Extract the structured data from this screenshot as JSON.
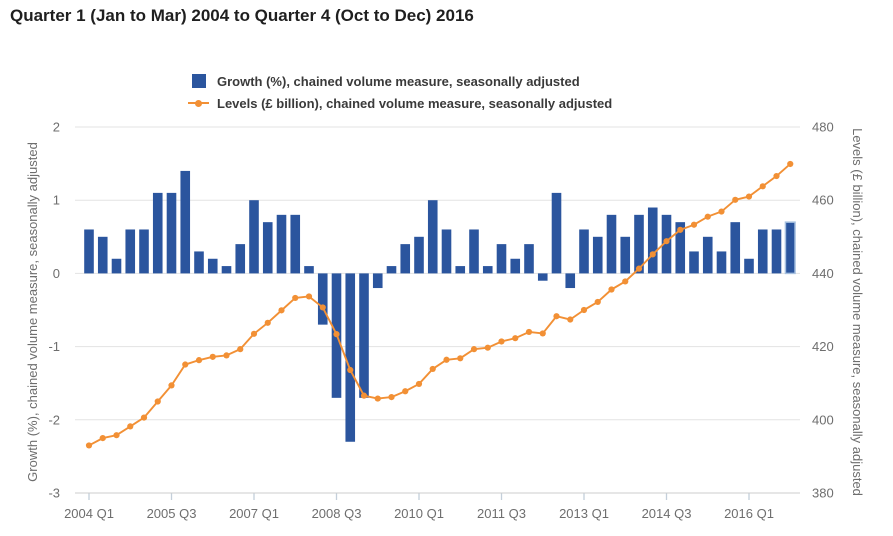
{
  "header": {
    "title": "Quarter 1 (Jan to Mar) 2004 to Quarter 4 (Oct to Dec) 2016"
  },
  "legend": {
    "items": [
      {
        "label": "Growth (%), chained volume measure, seasonally adjusted",
        "marker": "square",
        "color": "#2b559e"
      },
      {
        "label": "Levels (£ billion), chained volume measure, seasonally adjusted",
        "marker": "line-dot",
        "color": "#f29035"
      }
    ]
  },
  "axes": {
    "left": {
      "title": "Growth (%), chained volume measure, seasonally adjusted",
      "tick_labels": [
        "2",
        "1",
        "0",
        "-1",
        "-2",
        "-3"
      ],
      "tick_values": [
        2,
        1,
        0,
        -1,
        -2,
        -3
      ],
      "range": [
        -3,
        2
      ]
    },
    "right": {
      "title": "Levels (£ billion), chained volume measure, seasonally adjusted",
      "tick_labels": [
        "480",
        "460",
        "440",
        "420",
        "400",
        "380"
      ],
      "tick_values": [
        480,
        460,
        440,
        420,
        400,
        380
      ],
      "range": [
        380,
        480
      ]
    },
    "x": {
      "tick_labels": [
        "2004 Q1",
        "2005 Q3",
        "2007 Q1",
        "2008 Q3",
        "2010 Q1",
        "2011 Q3",
        "2013 Q1",
        "2014 Q3",
        "2016 Q1"
      ],
      "tick_every": 6
    }
  },
  "colors": {
    "bar": "#2b559e",
    "bar_highlight_outline": "#a6c0df",
    "line": "#f29035",
    "grid": "#e3e3e3",
    "axis_line": "#cccccc",
    "tick_mark": "#c4cfda",
    "tick_text": "#6e6e6e",
    "title_text": "#1f1f1f"
  },
  "chart_data": {
    "type": "bar",
    "title": "Quarter 1 (Jan to Mar) 2004 to Quarter 4 (Oct to Dec) 2016",
    "xlabel": "",
    "ylabel_left": "Growth (%), chained volume measure, seasonally adjusted",
    "ylabel_right": "Levels (£ billion), chained volume measure, seasonally adjusted",
    "left_ylim": [
      -3,
      2
    ],
    "right_ylim": [
      380,
      480
    ],
    "grid": true,
    "legend_position": "top",
    "highlighted_bar_index": 51,
    "categories": [
      "2004 Q1",
      "2004 Q2",
      "2004 Q3",
      "2004 Q4",
      "2005 Q1",
      "2005 Q2",
      "2005 Q3",
      "2005 Q4",
      "2006 Q1",
      "2006 Q2",
      "2006 Q3",
      "2006 Q4",
      "2007 Q1",
      "2007 Q2",
      "2007 Q3",
      "2007 Q4",
      "2008 Q1",
      "2008 Q2",
      "2008 Q3",
      "2008 Q4",
      "2009 Q1",
      "2009 Q2",
      "2009 Q3",
      "2009 Q4",
      "2010 Q1",
      "2010 Q2",
      "2010 Q3",
      "2010 Q4",
      "2011 Q1",
      "2011 Q2",
      "2011 Q3",
      "2011 Q4",
      "2012 Q1",
      "2012 Q2",
      "2012 Q3",
      "2012 Q4",
      "2013 Q1",
      "2013 Q2",
      "2013 Q3",
      "2013 Q4",
      "2014 Q1",
      "2014 Q2",
      "2014 Q3",
      "2014 Q4",
      "2015 Q1",
      "2015 Q2",
      "2015 Q3",
      "2015 Q4",
      "2016 Q1",
      "2016 Q2",
      "2016 Q3",
      "2016 Q4"
    ],
    "series": [
      {
        "name": "Growth (%), chained volume measure, seasonally adjusted",
        "type": "bar",
        "axis": "left",
        "color": "#2b559e",
        "values": [
          0.6,
          0.5,
          0.2,
          0.6,
          0.6,
          1.1,
          1.1,
          1.4,
          0.3,
          0.2,
          0.1,
          0.4,
          1.0,
          0.7,
          0.8,
          0.8,
          0.1,
          -0.7,
          -1.7,
          -2.3,
          -1.7,
          -0.2,
          0.1,
          0.4,
          0.5,
          1.0,
          0.6,
          0.1,
          0.6,
          0.1,
          0.4,
          0.2,
          0.4,
          -0.1,
          1.1,
          -0.2,
          0.6,
          0.5,
          0.8,
          0.5,
          0.8,
          0.9,
          0.8,
          0.7,
          0.3,
          0.5,
          0.3,
          0.7,
          0.2,
          0.6,
          0.6,
          0.7
        ]
      },
      {
        "name": "Levels (£ billion), chained volume measure, seasonally adjusted",
        "type": "line",
        "axis": "right",
        "color": "#f29035",
        "values": [
          393.0,
          395.0,
          395.8,
          398.2,
          400.6,
          405.0,
          409.4,
          415.1,
          416.3,
          417.2,
          417.6,
          419.3,
          423.5,
          426.5,
          429.9,
          433.3,
          433.7,
          430.7,
          423.4,
          413.6,
          406.6,
          405.8,
          406.2,
          407.8,
          409.8,
          413.9,
          416.4,
          416.8,
          419.3,
          419.7,
          421.4,
          422.3,
          424.0,
          423.6,
          428.3,
          427.4,
          430.0,
          432.2,
          435.6,
          437.8,
          441.3,
          445.2,
          448.8,
          451.9,
          453.3,
          455.5,
          456.9,
          460.1,
          461.0,
          463.8,
          466.6,
          469.9
        ]
      }
    ]
  }
}
